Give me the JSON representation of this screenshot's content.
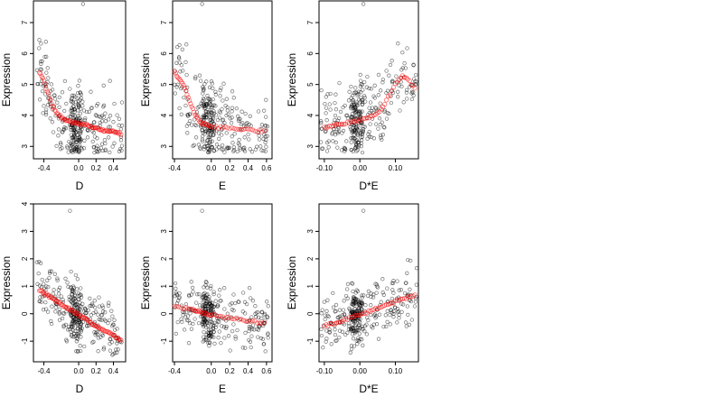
{
  "chart_data": [
    {
      "type": "scatter",
      "row": 1,
      "xlabel": "D",
      "ylabel": "Expression",
      "xlim": [
        -0.52,
        0.54
      ],
      "ylim": [
        2.6,
        7.7
      ],
      "xticks": [
        "-0.4",
        "0.0",
        "0.2",
        "0.4"
      ],
      "xtick_values": [
        -0.4,
        0.0,
        0.2,
        0.4
      ],
      "yticks": [
        "3",
        "4",
        "5",
        "6",
        "7"
      ],
      "ytick_values": [
        3,
        4,
        5,
        6,
        7
      ],
      "observed": {
        "x_range": [
          -0.48,
          0.5
        ],
        "y_range": [
          2.8,
          7.0
        ],
        "n": 320,
        "trend": "decreasing",
        "outlier": [
          0.05,
          7.6
        ]
      },
      "fitted": {
        "x": [
          -0.45,
          -0.4,
          -0.35,
          -0.3,
          -0.25,
          -0.2,
          -0.15,
          -0.1,
          -0.05,
          0.0,
          0.05,
          0.1,
          0.15,
          0.2,
          0.25,
          0.3,
          0.35,
          0.4,
          0.45,
          0.5
        ],
        "y": [
          5.4,
          5.1,
          4.7,
          4.3,
          4.05,
          3.95,
          3.85,
          3.8,
          3.75,
          3.75,
          3.7,
          3.7,
          3.65,
          3.6,
          3.55,
          3.5,
          3.5,
          3.5,
          3.45,
          3.4
        ]
      }
    },
    {
      "type": "scatter",
      "row": 1,
      "xlabel": "E",
      "ylabel": "Expression",
      "xlim": [
        -0.42,
        0.66
      ],
      "ylim": [
        2.6,
        7.7
      ],
      "xticks": [
        "-0.4",
        "0.0",
        "0.2",
        "0.4",
        "0.6"
      ],
      "xtick_values": [
        -0.4,
        0.0,
        0.2,
        0.4,
        0.6
      ],
      "yticks": [
        "3",
        "4",
        "5",
        "6",
        "7"
      ],
      "ytick_values": [
        3,
        4,
        5,
        6,
        7
      ],
      "observed": {
        "x_range": [
          -0.4,
          0.62
        ],
        "y_range": [
          2.8,
          7.0
        ],
        "n": 320,
        "trend": "decreasing",
        "outlier": [
          -0.1,
          7.6
        ]
      },
      "fitted": {
        "x": [
          -0.4,
          -0.35,
          -0.3,
          -0.25,
          -0.2,
          -0.15,
          -0.1,
          -0.05,
          0.0,
          0.1,
          0.2,
          0.3,
          0.4,
          0.5,
          0.6
        ],
        "y": [
          5.4,
          5.2,
          5.0,
          4.6,
          4.2,
          3.9,
          3.75,
          3.7,
          3.65,
          3.6,
          3.6,
          3.55,
          3.55,
          3.5,
          3.5
        ]
      }
    },
    {
      "type": "scatter",
      "row": 1,
      "xlabel": "D*E",
      "ylabel": "Expression",
      "xlim": [
        -0.115,
        0.165
      ],
      "ylim": [
        2.6,
        7.7
      ],
      "xticks": [
        "-0.10",
        "0.00",
        "0.10"
      ],
      "xtick_values": [
        -0.1,
        0.0,
        0.1
      ],
      "yticks": [
        "3",
        "4",
        "5",
        "6",
        "7"
      ],
      "ytick_values": [
        3,
        4,
        5,
        6,
        7
      ],
      "observed": {
        "x_range": [
          -0.11,
          0.16
        ],
        "y_range": [
          2.8,
          7.0
        ],
        "n": 320,
        "trend": "increasing",
        "outlier": [
          0.01,
          7.6
        ]
      },
      "fitted": {
        "x": [
          -0.1,
          -0.08,
          -0.06,
          -0.04,
          -0.02,
          0.0,
          0.02,
          0.04,
          0.06,
          0.08,
          0.1,
          0.12,
          0.14,
          0.16
        ],
        "y": [
          3.6,
          3.65,
          3.7,
          3.75,
          3.8,
          3.85,
          3.9,
          4.0,
          4.2,
          4.6,
          5.0,
          5.3,
          5.1,
          4.8
        ]
      }
    },
    {
      "type": "scatter",
      "row": 2,
      "xlabel": "D",
      "ylabel": "Expression",
      "xlim": [
        -0.52,
        0.54
      ],
      "ylim": [
        -1.75,
        4.0
      ],
      "xticks": [
        "-0.4",
        "0.0",
        "0.2",
        "0.4"
      ],
      "xtick_values": [
        -0.4,
        0.0,
        0.2,
        0.4
      ],
      "yticks": [
        "-1",
        "0",
        "1",
        "2",
        "3",
        "4"
      ],
      "ytick_values": [
        -1,
        0,
        1,
        2,
        3,
        4
      ],
      "observed": {
        "x_range": [
          -0.48,
          0.5
        ],
        "y_range": [
          -1.5,
          2.4
        ],
        "n": 320,
        "trend": "decreasing",
        "outlier": [
          -0.1,
          3.75
        ]
      },
      "fitted": {
        "x": [
          -0.45,
          -0.4,
          -0.35,
          -0.3,
          -0.25,
          -0.2,
          -0.15,
          -0.1,
          -0.05,
          0.0,
          0.05,
          0.1,
          0.15,
          0.2,
          0.25,
          0.3,
          0.35,
          0.4,
          0.45,
          0.5
        ],
        "y": [
          0.85,
          0.75,
          0.65,
          0.55,
          0.45,
          0.35,
          0.25,
          0.15,
          0.05,
          -0.05,
          -0.15,
          -0.25,
          -0.35,
          -0.45,
          -0.55,
          -0.65,
          -0.7,
          -0.8,
          -0.9,
          -1.0
        ]
      }
    },
    {
      "type": "scatter",
      "row": 2,
      "xlabel": "E",
      "ylabel": "Expression",
      "xlim": [
        -0.42,
        0.66
      ],
      "ylim": [
        -1.75,
        4.0
      ],
      "xticks": [
        "-0.4",
        "0.0",
        "0.2",
        "0.4",
        "0.6"
      ],
      "xtick_values": [
        -0.4,
        0.0,
        0.2,
        0.4,
        0.6
      ],
      "yticks": [
        "-1",
        "0",
        "1",
        "2",
        "3"
      ],
      "ytick_values": [
        -1,
        0,
        1,
        2,
        3
      ],
      "observed": {
        "x_range": [
          -0.4,
          0.62
        ],
        "y_range": [
          -1.5,
          2.2
        ],
        "n": 320,
        "trend": "slightly decreasing",
        "outlier": [
          -0.1,
          3.75
        ]
      },
      "fitted": {
        "x": [
          -0.4,
          -0.3,
          -0.2,
          -0.15,
          -0.1,
          -0.05,
          0.0,
          0.1,
          0.2,
          0.3,
          0.4,
          0.5,
          0.6
        ],
        "y": [
          0.25,
          0.2,
          0.15,
          0.1,
          0.05,
          0.0,
          -0.05,
          -0.1,
          -0.15,
          -0.2,
          -0.25,
          -0.3,
          -0.35
        ]
      }
    },
    {
      "type": "scatter",
      "row": 2,
      "xlabel": "D*E",
      "ylabel": "Expression",
      "xlim": [
        -0.115,
        0.165
      ],
      "ylim": [
        -1.75,
        4.0
      ],
      "xticks": [
        "-0.10",
        "0.00",
        "0.10"
      ],
      "xtick_values": [
        -0.1,
        0.0,
        0.1
      ],
      "yticks": [
        "-1",
        "0",
        "1",
        "2",
        "3"
      ],
      "ytick_values": [
        -1,
        0,
        1,
        2,
        3
      ],
      "observed": {
        "x_range": [
          -0.11,
          0.16
        ],
        "y_range": [
          -1.5,
          2.2
        ],
        "n": 320,
        "trend": "increasing",
        "outlier": [
          0.01,
          3.75
        ]
      },
      "fitted": {
        "x": [
          -0.1,
          -0.08,
          -0.06,
          -0.04,
          -0.02,
          0.0,
          0.02,
          0.04,
          0.06,
          0.08,
          0.1,
          0.12,
          0.14,
          0.16
        ],
        "y": [
          -0.45,
          -0.35,
          -0.3,
          -0.2,
          -0.1,
          -0.05,
          0.05,
          0.15,
          0.25,
          0.35,
          0.45,
          0.55,
          0.6,
          0.7
        ]
      }
    }
  ],
  "colors": {
    "observed_points": "#000000",
    "fitted_points": "#ff0000",
    "axis": "#000000",
    "background": "#ffffff"
  }
}
